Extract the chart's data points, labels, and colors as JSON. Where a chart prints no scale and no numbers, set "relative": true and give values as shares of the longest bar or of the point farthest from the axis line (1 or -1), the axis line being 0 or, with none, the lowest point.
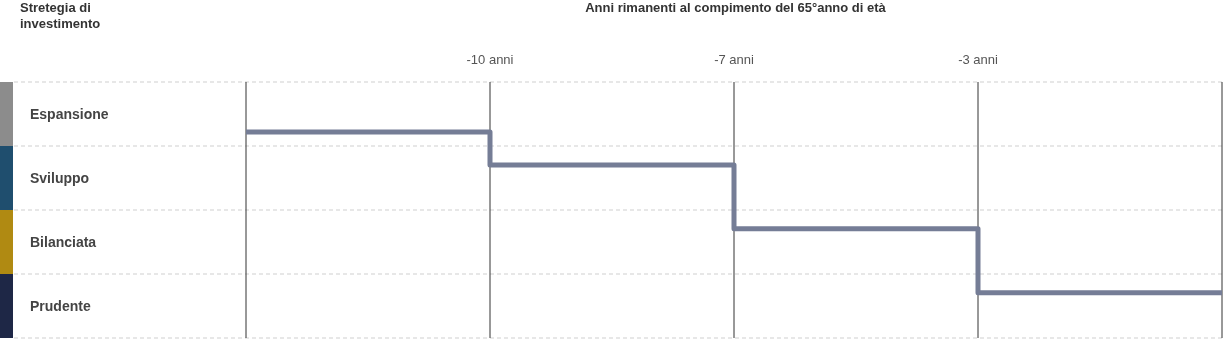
{
  "chart_data": {
    "type": "step",
    "title": "Anni rimanenti al compimento del 65°anno di età",
    "ylabel": "Stretegia di investimento",
    "categories": [
      null,
      "-10 anni",
      "-7 anni",
      "-3 anni",
      null
    ],
    "annotations": [
      "Espansione",
      "Sviluppo",
      "Bilanciata",
      "Prudente"
    ],
    "series": [
      {
        "color": "#757d96",
        "values": [
          1,
          0.84,
          0.53,
          0.22,
          0.22
        ]
      }
    ],
    "relative": true,
    "grid": true,
    "marker": "none",
    "line_style": "solid"
  }
}
